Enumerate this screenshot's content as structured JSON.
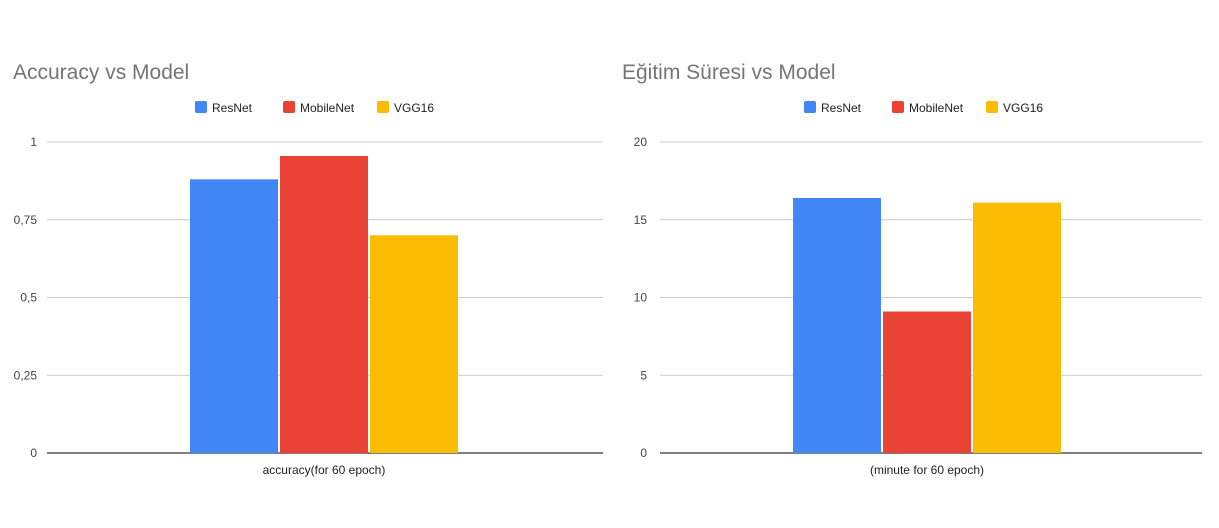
{
  "chart_data": [
    {
      "type": "bar",
      "title": "Accuracy vs Model",
      "categories": [
        "accuracy(for 60 epoch)"
      ],
      "series": [
        {
          "name": "ResNet",
          "values": [
            0.88
          ],
          "color": "#4285f4"
        },
        {
          "name": "MobileNet",
          "values": [
            0.955
          ],
          "color": "#ea4335"
        },
        {
          "name": "VGG16",
          "values": [
            0.7
          ],
          "color": "#fbbc04"
        }
      ],
      "ylim": [
        0,
        1
      ],
      "yticks": [
        0,
        0.25,
        0.5,
        0.75,
        1
      ],
      "ytick_labels": [
        "0",
        "0,25",
        "0,5",
        "0,75",
        "1"
      ],
      "xlabel": "",
      "ylabel": "",
      "legend_position": "top",
      "grid": true
    },
    {
      "type": "bar",
      "title": "Eğitim Süresi vs Model",
      "categories": [
        "(minute for 60 epoch)"
      ],
      "series": [
        {
          "name": "ResNet",
          "values": [
            16.4
          ],
          "color": "#4285f4"
        },
        {
          "name": "MobileNet",
          "values": [
            9.1
          ],
          "color": "#ea4335"
        },
        {
          "name": "VGG16",
          "values": [
            16.1
          ],
          "color": "#fbbc04"
        }
      ],
      "ylim": [
        0,
        20
      ],
      "yticks": [
        0,
        5,
        10,
        15,
        20
      ],
      "ytick_labels": [
        "0",
        "5",
        "10",
        "15",
        "20"
      ],
      "xlabel": "",
      "ylabel": "",
      "legend_position": "top",
      "grid": true
    }
  ]
}
